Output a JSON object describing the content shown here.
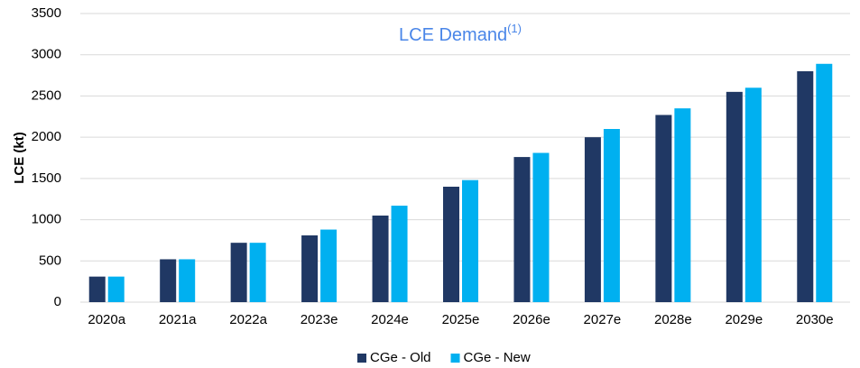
{
  "chart_data": {
    "type": "bar",
    "title": "LCE Demand",
    "title_superscript": "(1)",
    "y_label": "LCE (kt)",
    "categories": [
      "2020a",
      "2021a",
      "2022a",
      "2023e",
      "2024e",
      "2025e",
      "2026e",
      "2027e",
      "2028e",
      "2029e",
      "2030e"
    ],
    "series": [
      {
        "name": "CGe - Old",
        "color": "#203864",
        "values": [
          310,
          520,
          720,
          810,
          1050,
          1400,
          1760,
          2000,
          2270,
          2550,
          2800
        ]
      },
      {
        "name": "CGe - New",
        "color": "#00b0f0",
        "values": [
          310,
          520,
          720,
          880,
          1170,
          1480,
          1810,
          2100,
          2350,
          2600,
          2890
        ]
      }
    ],
    "ylim": [
      0,
      3500
    ],
    "yticks": [
      0,
      500,
      1000,
      1500,
      2000,
      2500,
      3000,
      3500
    ],
    "grid": true,
    "legend": "bottom"
  }
}
